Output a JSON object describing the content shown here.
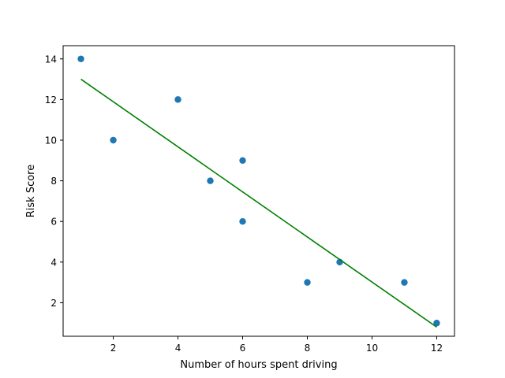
{
  "chart_data": {
    "type": "scatter",
    "title": "",
    "xlabel": "Number of hours spent driving",
    "ylabel": "Risk Score",
    "xlim": [
      0.45,
      12.55
    ],
    "ylim": [
      0.35,
      14.65
    ],
    "xticks": [
      2,
      4,
      6,
      8,
      10,
      12
    ],
    "yticks": [
      2,
      4,
      6,
      8,
      10,
      12,
      14
    ],
    "grid": false,
    "series": [
      {
        "type": "scatter",
        "color": "#1f77b4",
        "x": [
          1,
          2,
          4,
          5,
          6,
          6,
          8,
          9,
          11,
          12
        ],
        "y": [
          14,
          10,
          12,
          8,
          9,
          6,
          3,
          4,
          3,
          1
        ]
      },
      {
        "type": "line",
        "color": "#008000",
        "x": [
          1,
          12
        ],
        "y": [
          13.0,
          0.8
        ]
      }
    ]
  }
}
